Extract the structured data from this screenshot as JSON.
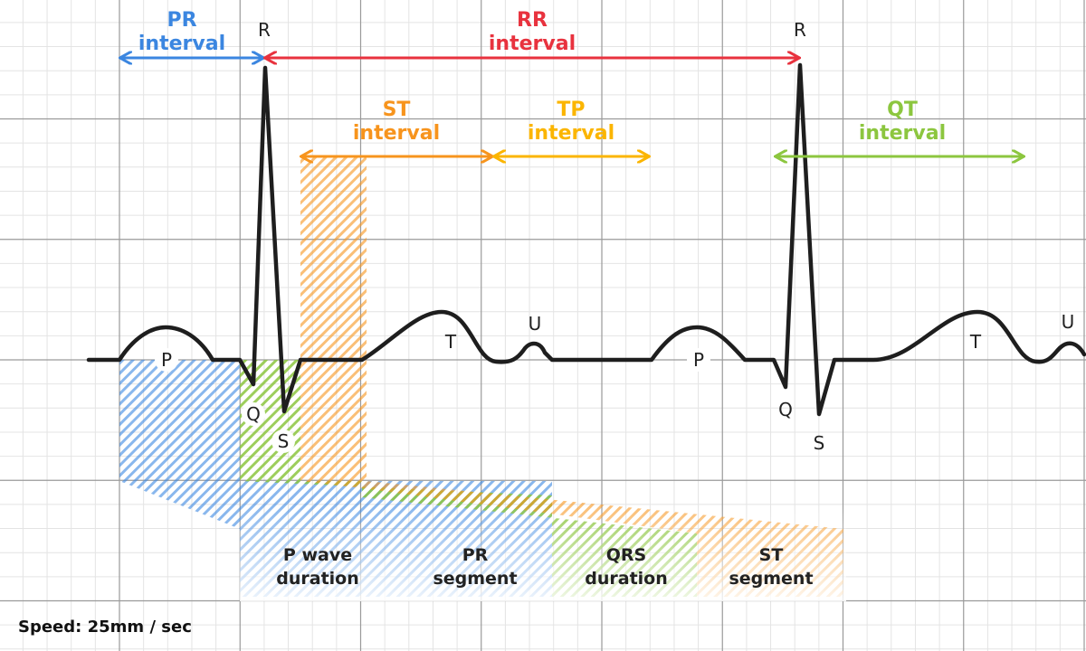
{
  "colors": {
    "pr": "#3b86e0",
    "rr": "#e8323e",
    "st": "#f7941d",
    "tp": "#fbb500",
    "qt": "#8cc63f",
    "trace": "#1e1e1e",
    "grid_major": "#9a9a9a",
    "grid_minor": "#e4e4e4"
  },
  "intervals": {
    "pr": [
      "PR",
      "interval"
    ],
    "rr": [
      "RR",
      "interval"
    ],
    "st": [
      "ST",
      "interval"
    ],
    "tp": [
      "TP",
      "interval"
    ],
    "qt": [
      "QT",
      "interval"
    ]
  },
  "waves": {
    "p1": "P",
    "q1": "Q",
    "r1": "R",
    "s1": "S",
    "t1": "T",
    "u1": "U",
    "p2": "P",
    "q2": "Q",
    "r2": "R",
    "s2": "S",
    "t2": "T",
    "u2": "U"
  },
  "segments": {
    "p_wave": [
      "P wave",
      "duration"
    ],
    "pr": [
      "PR",
      "segment"
    ],
    "qrs": [
      "QRS",
      "duration"
    ],
    "st": [
      "ST",
      "segment"
    ]
  },
  "speed": "Speed: 25mm / sec"
}
